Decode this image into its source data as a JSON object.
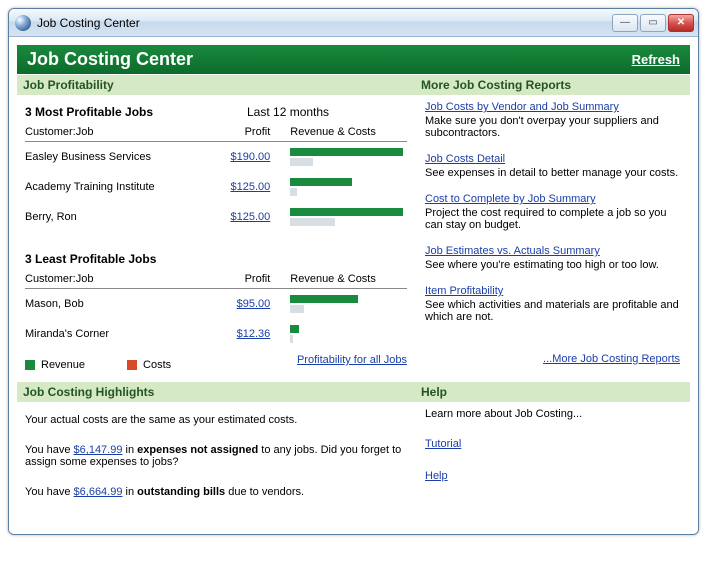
{
  "window": {
    "title": "Job Costing Center"
  },
  "header": {
    "title": "Job Costing Center",
    "refresh": "Refresh"
  },
  "profitability": {
    "section": "Job Profitability",
    "most_title": "3 Most Profitable Jobs",
    "period": "Last 12 months",
    "col_job": "Customer:Job",
    "col_profit": "Profit",
    "col_rc": "Revenue & Costs",
    "most": [
      {
        "job": "Easley Business Services",
        "profit": "$190.00",
        "rev_w": 100,
        "cost_w": 20
      },
      {
        "job": "Academy Training Institute",
        "profit": "$125.00",
        "rev_w": 55,
        "cost_w": 6
      },
      {
        "job": "Berry, Ron",
        "profit": "$125.00",
        "rev_w": 100,
        "cost_w": 40
      }
    ],
    "least_title": "3 Least Profitable Jobs",
    "least": [
      {
        "job": "Mason, Bob",
        "profit": "$95.00",
        "rev_w": 60,
        "cost_w": 12
      },
      {
        "job": "Miranda's Corner",
        "profit": "$12.36",
        "rev_w": 8,
        "cost_w": 2
      }
    ],
    "legend_rev": "Revenue",
    "legend_cost": "Costs",
    "all_jobs_link": "Profitability for all Jobs"
  },
  "reports": {
    "section": "More Job Costing Reports",
    "items": [
      {
        "link": "Job Costs by Vendor and Job Summary",
        "desc": "Make sure you don't overpay your suppliers and subcontractors."
      },
      {
        "link": "Job Costs Detail",
        "desc": "See expenses in detail to better manage your costs."
      },
      {
        "link": "Cost to Complete by Job Summary",
        "desc": "Project the cost required to complete a job so you can stay on budget."
      },
      {
        "link": "Job Estimates vs. Actuals Summary",
        "desc": "See where you're estimating too high or too low."
      },
      {
        "link": "Item Profitability",
        "desc": "See which activities and materials are profitable and which are not."
      }
    ],
    "more": "...More Job Costing Reports"
  },
  "highlights": {
    "section": "Job Costing Highlights",
    "line1": "Your actual costs are the same as your estimated costs.",
    "line2a": "You have ",
    "line2_amt": "$6,147.99",
    "line2b": " in ",
    "line2_bold": "expenses not assigned",
    "line2c": " to any jobs. Did you forget to assign some expenses to jobs?",
    "line3a": "You have ",
    "line3_amt": "$6,664.99",
    "line3b": " in ",
    "line3_bold": "outstanding bills",
    "line3c": " due to vendors."
  },
  "help": {
    "section": "Help",
    "intro": "Learn more about Job Costing...",
    "tutorial": "Tutorial",
    "help": "Help"
  },
  "colors": {
    "rev": "#1a8a3e",
    "cost_bar": "#d8dfe4",
    "cost_legend": "#d84b2a"
  }
}
